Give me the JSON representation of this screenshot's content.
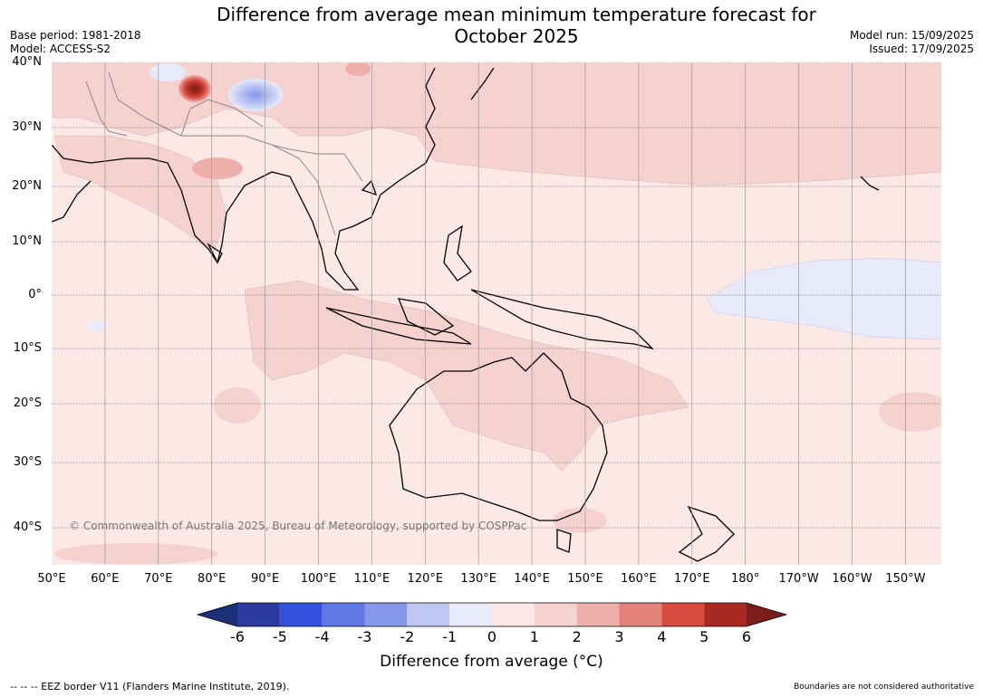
{
  "title": "Difference from average mean minimum temperature forecast for October 2025",
  "title_line1": "Difference from average mean minimum temperature forecast for",
  "title_line2": "October 2025",
  "base_period": "Base period: 1981-2018",
  "model": "Model: ACCESS-S2",
  "model_run": "Model run: 15/09/2025",
  "issued": "Issued: 17/09/2025",
  "copyright": "© Commonwealth of Australia 2025, Bureau of Meteorology, supported by COSPPac",
  "lat_labels": [
    "40°N",
    "30°N",
    "20°N",
    "10°N",
    "0°",
    "10°S",
    "20°S",
    "30°S",
    "40°S"
  ],
  "lon_labels": [
    "50°E",
    "60°E",
    "70°E",
    "80°E",
    "90°E",
    "100°E",
    "110°E",
    "120°E",
    "130°E",
    "140°E",
    "150°E",
    "160°E",
    "170°E",
    "180°",
    "170°W",
    "160°W",
    "150°W"
  ],
  "colorbar": {
    "ticks": [
      "-6",
      "-5",
      "-4",
      "-3",
      "-2",
      "-1",
      "0",
      "1",
      "2",
      "3",
      "4",
      "5",
      "6"
    ],
    "colors": [
      "#2a3a9e",
      "#3350dd",
      "#5f78e6",
      "#8797ea",
      "#c0c7f3",
      "#e8eafb",
      "#fce9e7",
      "#f5d2cf",
      "#eeb0aa",
      "#e4837c",
      "#d94a3f",
      "#a82a22"
    ],
    "under_color": "#1e2f7a",
    "over_color": "#7a1e17",
    "label": "Difference from average ($^\\circ$C)",
    "label_display": "Difference from average (°C)"
  },
  "footer_left": "--  --  -- EEZ border V11 (Flanders Marine Institute, 2019).",
  "footer_right": "Boundaries are not considered authoritative"
}
